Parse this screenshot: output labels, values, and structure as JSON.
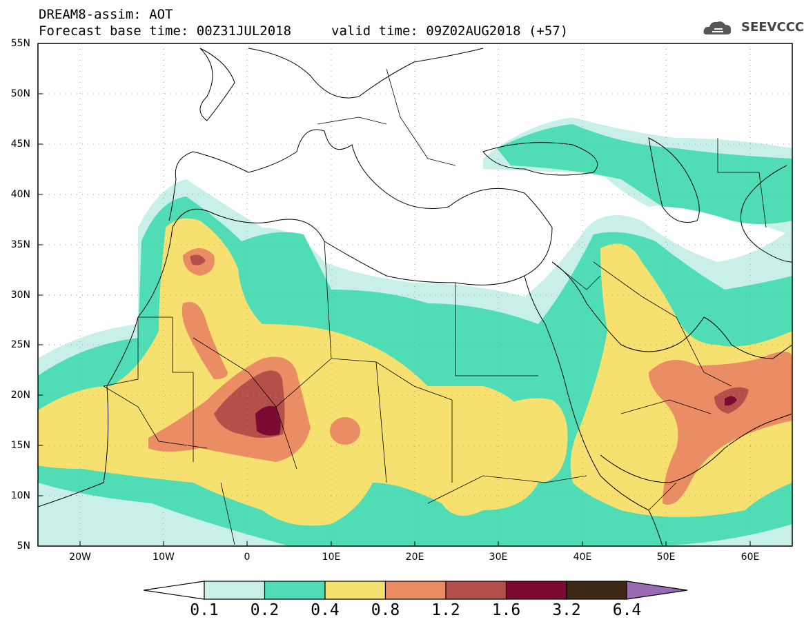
{
  "title": {
    "line1": "DREAM8-assim: AOT",
    "line2": "Forecast base time: 00Z31JUL2018",
    "valid": "valid time: 09Z02AUG2018 (+57)"
  },
  "logo": {
    "text": "SEEVCCC",
    "icon": "cloud-icon"
  },
  "axes": {
    "lat_labels": [
      "55N",
      "50N",
      "45N",
      "40N",
      "35N",
      "30N",
      "25N",
      "20N",
      "15N",
      "10N",
      "5N"
    ],
    "lon_labels": [
      "20W",
      "10W",
      "0",
      "10E",
      "20E",
      "30E",
      "40E",
      "50E",
      "60E"
    ]
  },
  "map": {
    "extent": {
      "lon_min": -25,
      "lon_max": 65,
      "lat_min": 5,
      "lat_max": 55
    },
    "field": "Aerosol optical thickness (AOT)",
    "grid": true
  },
  "colorbar": {
    "labels": [
      "0.1",
      "0.2",
      "0.4",
      "0.8",
      "1.2",
      "1.6",
      "3.2",
      "6.4"
    ],
    "colors": [
      "#c8f0e8",
      "#50dcb4",
      "#f5e070",
      "#ea8c64",
      "#b4504a",
      "#7c0a32",
      "#3c2814",
      "#9a6ab4"
    ]
  }
}
